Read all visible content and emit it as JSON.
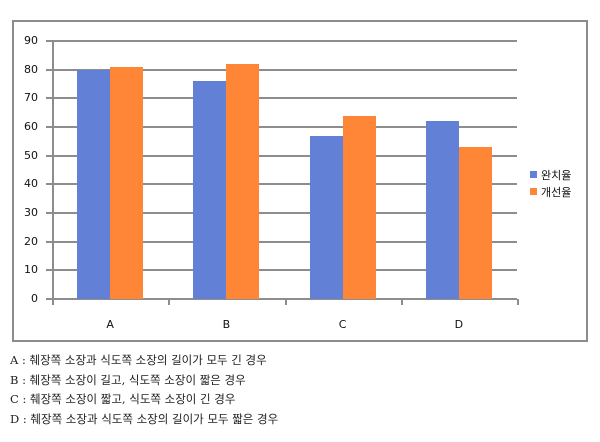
{
  "chart_data": {
    "type": "bar",
    "title": "",
    "xlabel": "",
    "ylabel": "",
    "categories": [
      "A",
      "B",
      "C",
      "D"
    ],
    "series": [
      {
        "name": "완치율",
        "color": "#6281D6",
        "values": [
          80,
          76,
          57,
          62
        ]
      },
      {
        "name": "개선율",
        "color": "#FF8636",
        "values": [
          81,
          82,
          64,
          53
        ]
      }
    ],
    "ylim": [
      0,
      90
    ],
    "yticks": [
      0,
      10,
      20,
      30,
      40,
      50,
      60,
      70,
      80,
      90
    ],
    "ytick_labels": [
      "0",
      "10",
      "20",
      "30",
      "40",
      "50",
      "60",
      "70",
      "80",
      "90"
    ],
    "grid": true,
    "legend_position": "right"
  },
  "legend": {
    "items": [
      {
        "label": "완치율",
        "color": "#6281D6"
      },
      {
        "label": "개선율",
        "color": "#FF8636"
      }
    ]
  },
  "notes": [
    "A : 췌장쪽 소장과 식도쪽 소장의 길이가 모두 긴 경우",
    "B : 췌장쪽 소장이 길고, 식도쪽 소장이 짧은 경우",
    "C : 췌장쪽 소장이 짧고, 식도쪽 소장이 긴 경우",
    "D : 췌장쪽 소장과 식도쪽 소장의 길이가 모두 짧은 경우"
  ]
}
